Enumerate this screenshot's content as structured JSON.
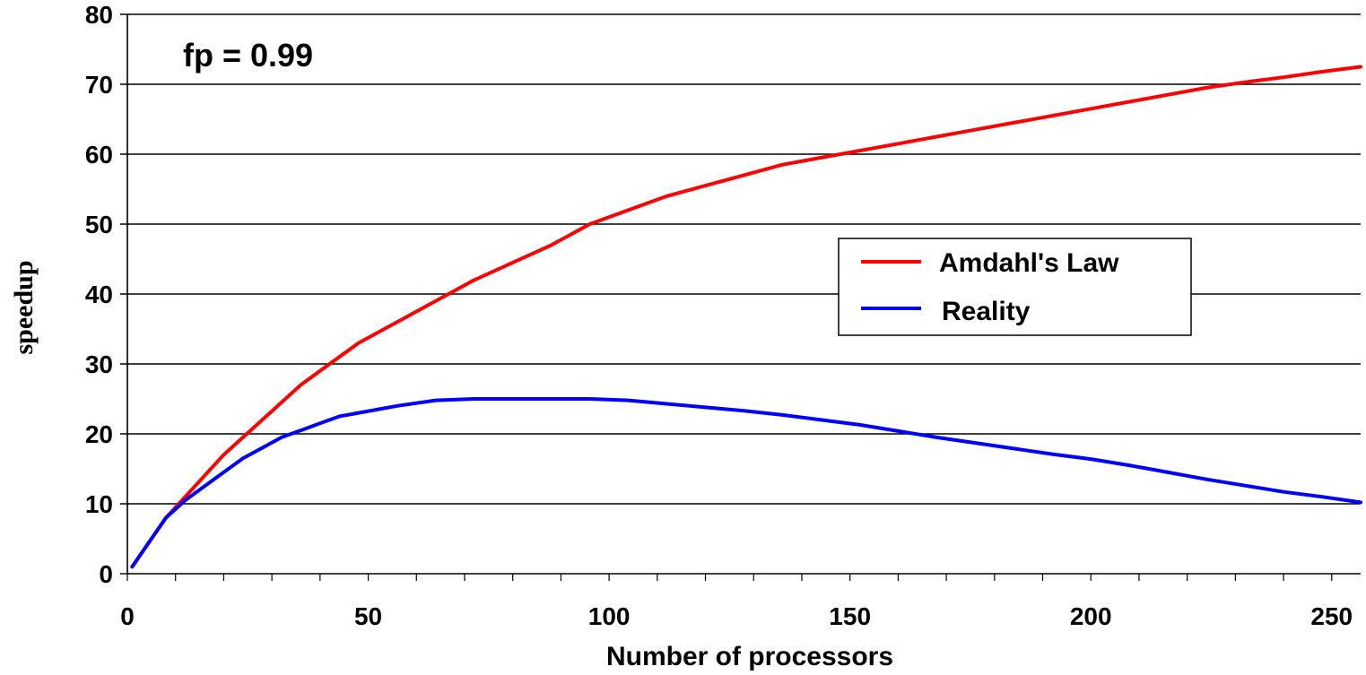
{
  "chart_data": {
    "type": "line",
    "xlabel": "Number of processors",
    "ylabel": "speedup",
    "annotation": "fp = 0.99",
    "xlim": [
      0,
      256
    ],
    "ylim": [
      0,
      80
    ],
    "x_ticks": [
      0,
      50,
      100,
      150,
      200,
      250
    ],
    "y_ticks": [
      0,
      10,
      20,
      30,
      40,
      50,
      60,
      70,
      80
    ],
    "grid": "horizontal",
    "legend_position": "center-right",
    "series": [
      {
        "name": "Amdahl's Law",
        "color": "#ff0000",
        "x": [
          1,
          4,
          8,
          12,
          16,
          20,
          24,
          28,
          32,
          36,
          40,
          48,
          56,
          64,
          72,
          80,
          88,
          96,
          104,
          112,
          120,
          128,
          136,
          144,
          152,
          160,
          168,
          176,
          184,
          192,
          200,
          208,
          216,
          224,
          232,
          240,
          248,
          256
        ],
        "y": [
          1.0,
          4.0,
          8.0,
          11.0,
          14.0,
          17.0,
          19.5,
          22.0,
          24.5,
          27.0,
          29.0,
          33.0,
          36.0,
          39.0,
          42.0,
          44.5,
          47.0,
          50.0,
          52.0,
          54.0,
          55.5,
          57.0,
          58.5,
          59.5,
          60.5,
          61.5,
          62.5,
          63.5,
          64.5,
          65.5,
          66.5,
          67.5,
          68.5,
          69.5,
          70.3,
          71.0,
          71.8,
          72.5
        ]
      },
      {
        "name": "Reality",
        "color": "#0000ff",
        "x": [
          1,
          4,
          8,
          12,
          16,
          20,
          24,
          28,
          32,
          36,
          40,
          44,
          48,
          56,
          64,
          72,
          80,
          88,
          96,
          104,
          112,
          120,
          128,
          136,
          144,
          152,
          160,
          168,
          176,
          184,
          192,
          200,
          208,
          216,
          224,
          232,
          240,
          248,
          256
        ],
        "y": [
          1.0,
          4.0,
          8.0,
          10.5,
          12.5,
          14.5,
          16.5,
          18.0,
          19.5,
          20.5,
          21.5,
          22.5,
          23.0,
          24.0,
          24.8,
          25.0,
          25.0,
          25.0,
          25.0,
          24.8,
          24.3,
          23.8,
          23.3,
          22.7,
          22.0,
          21.3,
          20.4,
          19.5,
          18.7,
          17.9,
          17.1,
          16.4,
          15.5,
          14.5,
          13.5,
          12.6,
          11.7,
          11.0,
          10.2
        ]
      }
    ]
  }
}
